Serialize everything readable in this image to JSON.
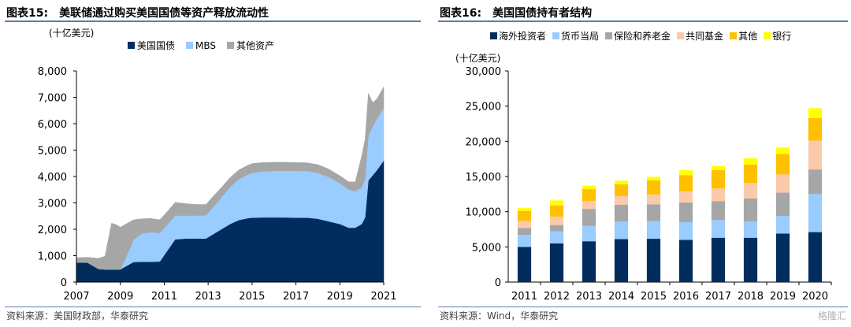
{
  "left": {
    "figure_number": "图表15:",
    "title": "美联储通过购买美国国债等资产释放流动性",
    "source": "资料来源：美国财政部，华泰研究"
  },
  "right": {
    "figure_number": "图表16:",
    "title": "美国国债持有者结构",
    "source": "资料来源：Wind，华泰研究"
  },
  "watermark": "格隆汇",
  "colors": {
    "navy": "#002d5e",
    "light_blue": "#99ccff",
    "gray": "#a6a6a6",
    "peach": "#fbcaaa",
    "orange": "#ffc000",
    "yellow": "#ffff00"
  },
  "chart_data": [
    {
      "type": "area",
      "stacked": true,
      "unit_label": "(十亿美元)",
      "xlabel": "",
      "ylabel": "",
      "x_ticks": [
        "2007",
        "2009",
        "2011",
        "2013",
        "2015",
        "2017",
        "2019",
        "2021"
      ],
      "y_ticks": [
        "0",
        "1,000",
        "2,000",
        "3,000",
        "4,000",
        "5,000",
        "6,000",
        "7,000",
        "8,000"
      ],
      "xlim": [
        2007,
        2021
      ],
      "ylim": [
        0,
        8000
      ],
      "legend_position": "top",
      "x": [
        2007.0,
        2007.5,
        2008.0,
        2008.3,
        2008.6,
        2008.8,
        2009.0,
        2009.3,
        2009.6,
        2010.0,
        2010.4,
        2010.8,
        2011.0,
        2011.5,
        2012.0,
        2012.5,
        2012.9,
        2013.2,
        2013.6,
        2014.0,
        2014.4,
        2014.8,
        2015.0,
        2015.5,
        2016.0,
        2016.5,
        2017.0,
        2017.5,
        2018.0,
        2018.5,
        2019.0,
        2019.4,
        2019.7,
        2020.0,
        2020.15,
        2020.3,
        2020.5,
        2020.7,
        2021.0
      ],
      "series": [
        {
          "name": "美国国债",
          "color": "#002d5e",
          "values": [
            740,
            740,
            500,
            480,
            480,
            480,
            480,
            620,
            760,
            770,
            770,
            780,
            1020,
            1620,
            1650,
            1650,
            1650,
            1800,
            2000,
            2200,
            2350,
            2420,
            2440,
            2450,
            2450,
            2450,
            2440,
            2440,
            2400,
            2300,
            2200,
            2060,
            2060,
            2200,
            2450,
            3850,
            4050,
            4250,
            4600
          ]
        },
        {
          "name": "MBS",
          "color": "#99ccff",
          "values": [
            0,
            0,
            0,
            0,
            0,
            0,
            0,
            400,
            850,
            1080,
            1120,
            1080,
            1020,
            900,
            870,
            870,
            880,
            1020,
            1200,
            1400,
            1550,
            1650,
            1700,
            1740,
            1760,
            1770,
            1770,
            1770,
            1740,
            1680,
            1550,
            1450,
            1380,
            1390,
            1450,
            1700,
            1850,
            1950,
            2000
          ]
        },
        {
          "name": "其他资产",
          "color": "#a6a6a6",
          "values": [
            180,
            200,
            400,
            500,
            1750,
            1700,
            1600,
            1200,
            750,
            550,
            520,
            500,
            500,
            500,
            450,
            420,
            410,
            400,
            380,
            360,
            350,
            350,
            350,
            340,
            330,
            320,
            320,
            310,
            310,
            300,
            280,
            290,
            350,
            1200,
            1500,
            1600,
            900,
            750,
            800
          ]
        }
      ]
    },
    {
      "type": "bar",
      "stacked": true,
      "unit_label": "(十亿美元)",
      "xlabel": "",
      "ylabel": "",
      "categories": [
        "2011",
        "2012",
        "2013",
        "2014",
        "2015",
        "2016",
        "2017",
        "2018",
        "2019",
        "2020"
      ],
      "y_ticks": [
        "0",
        "5,000",
        "10,000",
        "15,000",
        "20,000",
        "25,000",
        "30,000"
      ],
      "ylim": [
        0,
        30000
      ],
      "legend_position": "top",
      "series": [
        {
          "name": "海外投资者",
          "color": "#002d5e",
          "values": [
            5000,
            5500,
            5800,
            6100,
            6150,
            6000,
            6300,
            6300,
            6900,
            7100
          ]
        },
        {
          "name": "货币当局",
          "color": "#99ccff",
          "values": [
            1700,
            1700,
            2200,
            2500,
            2500,
            2500,
            2500,
            2300,
            2500,
            5400
          ]
        },
        {
          "name": "保险和养老金",
          "color": "#a6a6a6",
          "values": [
            1000,
            900,
            2400,
            2400,
            2400,
            2800,
            2700,
            3300,
            3300,
            3500
          ]
        },
        {
          "name": "共同基金",
          "color": "#fbcaaa",
          "values": [
            1000,
            1200,
            1100,
            1200,
            1400,
            1600,
            1800,
            2200,
            2600,
            4100
          ]
        },
        {
          "name": "其他",
          "color": "#ffc000",
          "values": [
            1400,
            1600,
            1700,
            1700,
            2000,
            2300,
            2600,
            2600,
            2900,
            3200
          ]
        },
        {
          "name": "银行",
          "color": "#ffff00",
          "values": [
            400,
            700,
            500,
            500,
            500,
            700,
            600,
            900,
            900,
            1400
          ]
        }
      ]
    }
  ]
}
